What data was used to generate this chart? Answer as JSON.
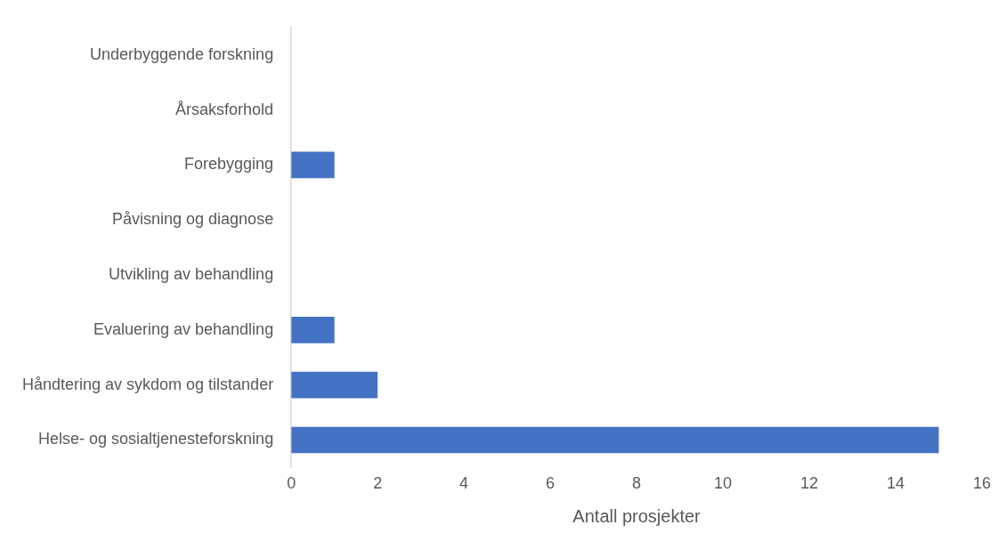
{
  "chart_data": {
    "type": "bar",
    "orientation": "horizontal",
    "xlabel": "Antall prosjekter",
    "categories": [
      "Underbyggende forskning",
      "Årsaksforhold",
      "Forebygging",
      "Påvisning og diagnose",
      "Utvikling av behandling",
      "Evaluering av behandling",
      "Håndtering av sykdom og tilstander",
      "Helse- og sosialtjenesteforskning"
    ],
    "values": [
      0,
      0,
      1,
      0,
      0,
      1,
      2,
      15
    ],
    "color": "#4472c4",
    "xlim": [
      0,
      16
    ],
    "xticks": [
      0,
      2,
      4,
      6,
      8,
      10,
      12,
      14,
      16
    ],
    "grid": false,
    "legend": false
  }
}
